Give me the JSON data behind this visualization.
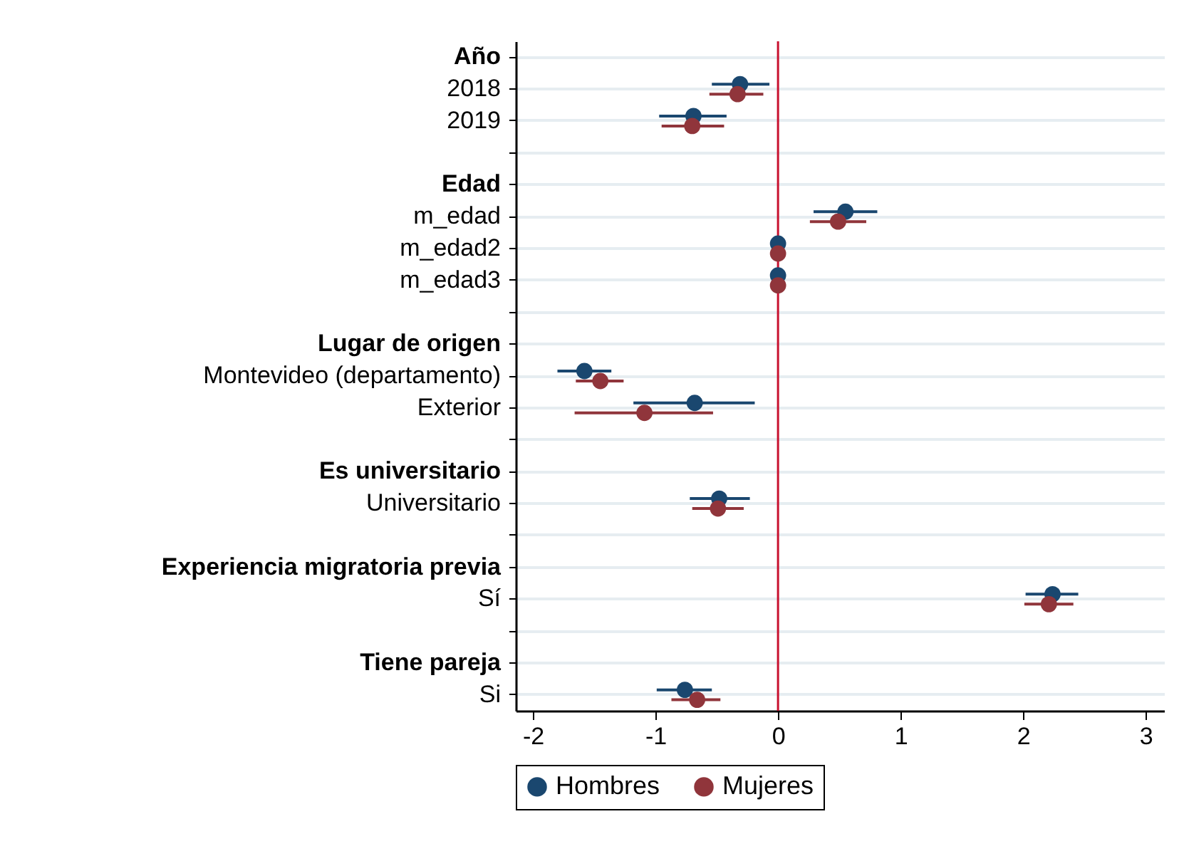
{
  "chart_data": {
    "type": "scatter",
    "orientation": "horizontal",
    "categories": [
      "Año",
      "2018",
      "2019",
      null,
      "Edad",
      "m_edad",
      "m_edad2",
      "m_edad3",
      null,
      "Lugar de origen",
      "Montevideo (departamento)",
      "Exterior",
      null,
      "Es universitario",
      "Universitario",
      null,
      "Experiencia migratoria previa",
      "Sí",
      null,
      "Tiene pareja",
      "Si"
    ],
    "series": [
      {
        "name": "Hombres",
        "color": "#1a476f",
        "values": [
          null,
          -0.31,
          -0.69,
          null,
          null,
          0.55,
          0,
          0,
          null,
          null,
          -1.58,
          -0.68,
          null,
          null,
          -0.48,
          null,
          null,
          2.24,
          null,
          null,
          -0.76
        ],
        "errors": [
          null,
          [
            -0.54,
            -0.07
          ],
          [
            -0.97,
            -0.42
          ],
          null,
          null,
          [
            0.29,
            0.81
          ],
          null,
          null,
          null,
          null,
          [
            -1.8,
            -1.36
          ],
          [
            -1.18,
            -0.19
          ],
          null,
          null,
          [
            -0.72,
            -0.23
          ],
          null,
          null,
          [
            2.02,
            2.45
          ],
          null,
          null,
          [
            -0.99,
            -0.54
          ]
        ]
      },
      {
        "name": "Mujeres",
        "color": "#90353b",
        "values": [
          null,
          -0.33,
          -0.7,
          null,
          null,
          0.49,
          0,
          0,
          null,
          null,
          -1.45,
          -1.09,
          null,
          null,
          -0.49,
          null,
          null,
          2.21,
          null,
          null,
          -0.66
        ],
        "errors": [
          null,
          [
            -0.56,
            -0.12
          ],
          [
            -0.95,
            -0.44
          ],
          null,
          null,
          [
            0.26,
            0.72
          ],
          null,
          null,
          null,
          null,
          [
            -1.65,
            -1.26
          ],
          [
            -1.66,
            -0.53
          ],
          null,
          null,
          [
            -0.7,
            -0.28
          ],
          null,
          null,
          [
            2.01,
            2.41
          ],
          null,
          null,
          [
            -0.87,
            -0.47
          ]
        ]
      }
    ],
    "xlim": [
      -2.14,
      3.15
    ],
    "xticks": [
      -2,
      -1,
      0,
      1,
      2,
      3
    ],
    "ref_lines": [
      {
        "axis": "x",
        "value": 0,
        "color": "#c8102e"
      }
    ],
    "grid": "y",
    "legend": "bottom",
    "marker": "circle"
  }
}
